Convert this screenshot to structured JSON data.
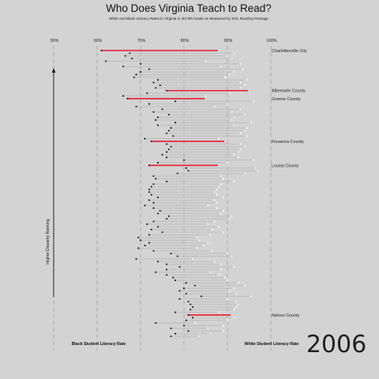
{
  "chart_data": {
    "type": "dumbbell",
    "title": "Who Does Virginia Teach to Read?",
    "subtitle": "White and Black Literacy Rates in Virginia in 3rd-8th Grade as Measured by SOL Reading Passage",
    "x_tick_labels": [
      "50%",
      "60%",
      "70%",
      "80%",
      "90%",
      "100%"
    ],
    "xlim": [
      50,
      100
    ],
    "black_label": "Black Student Literacy Rate",
    "white_label": "White Student Literacy Rate",
    "rank_label": "Higher Disparity Ranking",
    "year": "2006",
    "grid": "vertical-dashed",
    "colors": {
      "background": "#d3d3d3",
      "highlight": "#e8192c",
      "bar": "#bdbdbd",
      "black_point": "#111111",
      "white_point": "#ffffff",
      "grid": "#a8a8a8"
    },
    "rows": [
      {
        "black": 61.0,
        "white": 88.0,
        "highlight": true,
        "label": "Charlottesville City"
      },
      {
        "black": 67.5,
        "white": 91.5
      },
      {
        "black": 66.5,
        "white": 90.0
      },
      {
        "black": 68.0,
        "white": 91.0
      },
      {
        "black": 62.0,
        "white": 85.0
      },
      {
        "black": 70.0,
        "white": 93.0
      },
      {
        "black": 66.0,
        "white": 88.5
      },
      {
        "black": 72.0,
        "white": 93.5
      },
      {
        "black": 70.0,
        "white": 91.5
      },
      {
        "black": 69.0,
        "white": 90.5
      },
      {
        "black": 68.5,
        "white": 89.5
      },
      {
        "black": 74.0,
        "white": 94.5
      },
      {
        "black": 73.0,
        "white": 93.0
      },
      {
        "black": 74.5,
        "white": 94.0
      },
      {
        "black": 73.5,
        "white": 93.0
      },
      {
        "black": 76.0,
        "white": 95.0,
        "highlight": true,
        "label": "Albemarle County"
      },
      {
        "black": 71.5,
        "white": 90.5
      },
      {
        "black": 66.0,
        "white": 85.0
      },
      {
        "black": 67.0,
        "white": 85.0,
        "highlight": true,
        "label": "Greene County"
      },
      {
        "black": 78.0,
        "white": 96.0
      },
      {
        "black": 72.0,
        "white": 90.0
      },
      {
        "black": 69.0,
        "white": 87.0
      },
      {
        "black": 75.0,
        "white": 93.0
      },
      {
        "black": 73.0,
        "white": 91.0
      },
      {
        "black": 76.5,
        "white": 94.0
      },
      {
        "black": 74.0,
        "white": 91.5
      },
      {
        "black": 73.5,
        "white": 91.0
      },
      {
        "black": 78.0,
        "white": 95.5
      },
      {
        "black": 74.0,
        "white": 91.5
      },
      {
        "black": 77.0,
        "white": 94.5
      },
      {
        "black": 76.5,
        "white": 94.0
      },
      {
        "black": 76.0,
        "white": 93.0
      },
      {
        "black": 77.5,
        "white": 94.5
      },
      {
        "black": 71.0,
        "white": 88.0
      },
      {
        "black": 72.5,
        "white": 89.5,
        "highlight": true,
        "label": "Fluvanna County"
      },
      {
        "black": 76.0,
        "white": 93.0
      },
      {
        "black": 77.0,
        "white": 94.0
      },
      {
        "black": 76.5,
        "white": 93.0
      },
      {
        "black": 76.0,
        "white": 92.5
      },
      {
        "black": 75.0,
        "white": 91.5
      },
      {
        "black": 76.0,
        "white": 92.5
      },
      {
        "black": 80.0,
        "white": 96.0
      },
      {
        "black": 74.0,
        "white": 90.0
      },
      {
        "black": 72.0,
        "white": 88.0,
        "highlight": true,
        "label": "Louisa County"
      },
      {
        "black": 80.5,
        "white": 96.5
      },
      {
        "black": 81.0,
        "white": 97.0
      },
      {
        "black": 78.5,
        "white": 94.0
      },
      {
        "black": 73.0,
        "white": 88.5
      },
      {
        "black": 73.5,
        "white": 89.0
      },
      {
        "black": 76.0,
        "white": 91.5
      },
      {
        "black": 73.0,
        "white": 88.5
      },
      {
        "black": 72.5,
        "white": 88.0
      },
      {
        "black": 72.0,
        "white": 87.5
      },
      {
        "black": 72.0,
        "white": 87.0
      },
      {
        "black": 72.5,
        "white": 87.5
      },
      {
        "black": 74.0,
        "white": 89.0
      },
      {
        "black": 72.0,
        "white": 87.0
      },
      {
        "black": 73.0,
        "white": 87.5
      },
      {
        "black": 71.0,
        "white": 85.5
      },
      {
        "black": 73.0,
        "white": 87.5
      },
      {
        "black": 74.5,
        "white": 89.0
      },
      {
        "black": 74.0,
        "white": 88.5
      },
      {
        "black": 76.5,
        "white": 91.0
      },
      {
        "black": 76.0,
        "white": 90.5
      },
      {
        "black": 73.0,
        "white": 87.0
      },
      {
        "black": 71.5,
        "white": 85.5
      },
      {
        "black": 74.0,
        "white": 88.0
      },
      {
        "black": 72.5,
        "white": 86.5
      },
      {
        "black": 75.0,
        "white": 89.0
      },
      {
        "black": 72.0,
        "white": 86.0
      },
      {
        "black": 69.5,
        "white": 83.0
      },
      {
        "black": 70.0,
        "white": 83.5
      },
      {
        "black": 72.0,
        "white": 85.5
      },
      {
        "black": 71.0,
        "white": 84.5
      },
      {
        "black": 69.5,
        "white": 83.0
      },
      {
        "black": 73.0,
        "white": 86.5
      },
      {
        "black": 77.0,
        "white": 90.0
      },
      {
        "black": 78.5,
        "white": 91.0
      },
      {
        "black": 69.0,
        "white": 82.0
      },
      {
        "black": 74.0,
        "white": 87.0
      },
      {
        "black": 76.0,
        "white": 88.5
      },
      {
        "black": 79.0,
        "white": 91.5
      },
      {
        "black": 76.0,
        "white": 88.5
      },
      {
        "black": 73.5,
        "white": 86.0
      },
      {
        "black": 76.0,
        "white": 88.0
      },
      {
        "black": 77.5,
        "white": 89.5
      },
      {
        "black": 78.0,
        "white": 90.0
      },
      {
        "black": 80.5,
        "white": 92.5
      },
      {
        "black": 82.5,
        "white": 94.0
      },
      {
        "black": 80.0,
        "white": 91.5
      },
      {
        "black": 79.0,
        "white": 90.5
      },
      {
        "black": 80.5,
        "white": 92.0
      },
      {
        "black": 84.0,
        "white": 95.5
      },
      {
        "black": 79.0,
        "white": 90.0
      },
      {
        "black": 81.0,
        "white": 92.0
      },
      {
        "black": 81.5,
        "white": 92.5
      },
      {
        "black": 82.0,
        "white": 92.0
      },
      {
        "black": 81.5,
        "white": 91.5
      },
      {
        "black": 78.0,
        "white": 88.0
      },
      {
        "black": 81.0,
        "white": 91.0,
        "highlight": true,
        "label": "Nelson County"
      },
      {
        "black": 82.0,
        "white": 91.5
      },
      {
        "black": 80.5,
        "white": 90.0
      },
      {
        "black": 73.5,
        "white": 82.5
      },
      {
        "black": 80.0,
        "white": 89.0
      },
      {
        "black": 77.0,
        "white": 85.5
      },
      {
        "black": 81.0,
        "white": 89.0
      },
      {
        "black": 78.0,
        "white": 86.0
      },
      {
        "black": 77.0,
        "white": 83.5
      }
    ]
  }
}
